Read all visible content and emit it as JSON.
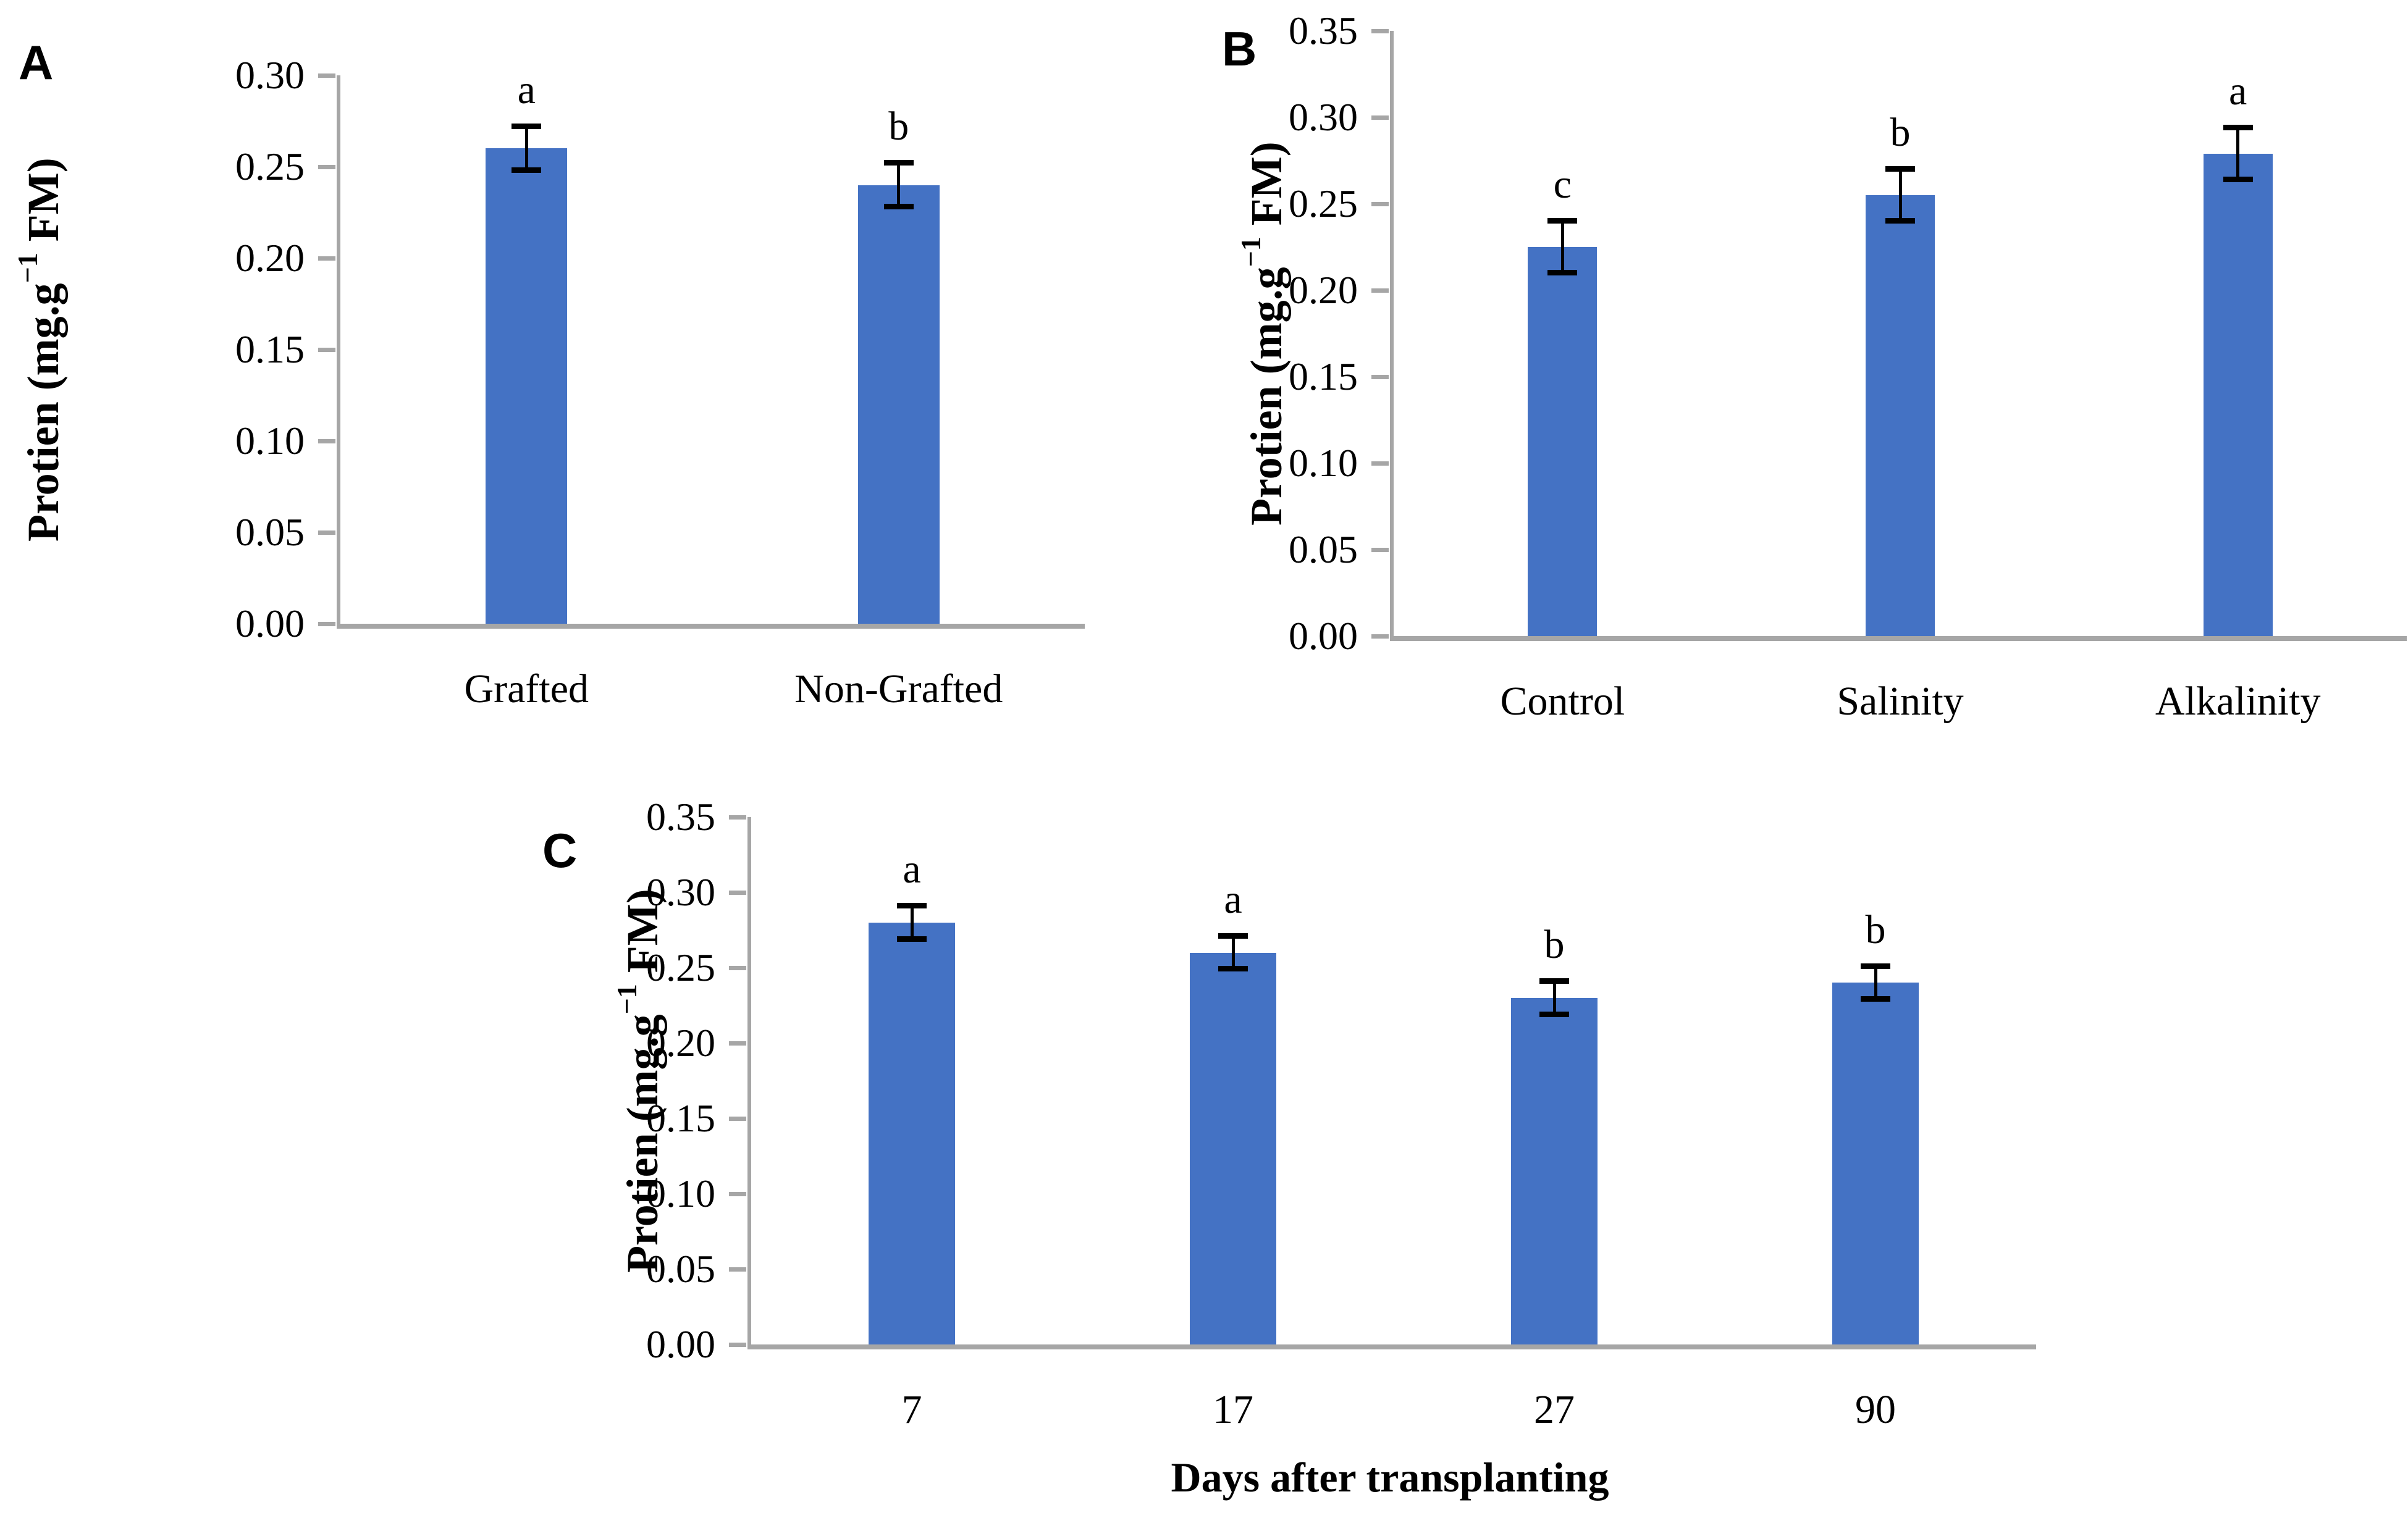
{
  "figure": {
    "background": "#ffffff"
  },
  "colors": {
    "bar_fill": "#4472C4",
    "axis_line": "#a6a6a6",
    "error_bar": "#000000",
    "text": "#000000"
  },
  "chart_data": [
    {
      "type": "bar",
      "panel_label": "A",
      "title": "",
      "ylabel": "Protien (mg.g−1 FM)",
      "ylabel_parts": {
        "prefix": "Protien (mg.g",
        "sup": "−1",
        "suffix": " FM)"
      },
      "xlabel": "",
      "categories": [
        "Grafted",
        "Non-Grafted"
      ],
      "values": [
        0.26,
        0.24
      ],
      "errors": [
        0.012,
        0.012
      ],
      "sig_letters": [
        "a",
        "b"
      ],
      "ylim": [
        0,
        0.3
      ],
      "ytick_step": 0.05,
      "ytick_labels": [
        "0.00",
        "0.05",
        "0.10",
        "0.15",
        "0.20",
        "0.25",
        "0.30"
      ],
      "grid": false,
      "legend": null
    },
    {
      "type": "bar",
      "panel_label": "B",
      "title": "",
      "ylabel": "Protien (mg.g−1 FM)",
      "ylabel_parts": {
        "prefix": "Protien (mg.g",
        "sup": "−1",
        "suffix": " FM)"
      },
      "xlabel": "",
      "categories": [
        "Control",
        "Salinity",
        "Alkalinity"
      ],
      "values": [
        0.225,
        0.255,
        0.279
      ],
      "errors": [
        0.015,
        0.015,
        0.015
      ],
      "sig_letters": [
        "c",
        "b",
        "a"
      ],
      "ylim": [
        0,
        0.35
      ],
      "ytick_step": 0.05,
      "ytick_labels": [
        "0.00",
        "0.05",
        "0.10",
        "0.15",
        "0.20",
        "0.25",
        "0.30",
        "0.35"
      ],
      "grid": false,
      "legend": null
    },
    {
      "type": "bar",
      "panel_label": "C",
      "title": "",
      "ylabel": "Protien (mg.g−1 FM)",
      "ylabel_parts": {
        "prefix": "Protien (mg.g",
        "sup": "−1",
        "suffix": " FM)"
      },
      "xlabel": "Days after transplanting",
      "categories": [
        "7",
        "17",
        "27",
        "90"
      ],
      "values": [
        0.28,
        0.26,
        0.23,
        0.24
      ],
      "errors": [
        0.011,
        0.011,
        0.011,
        0.011
      ],
      "sig_letters": [
        "a",
        "a",
        "b",
        "b"
      ],
      "ylim": [
        0,
        0.35
      ],
      "ytick_step": 0.05,
      "ytick_labels": [
        "0.00",
        "0.05",
        "0.10",
        "0.15",
        "0.20",
        "0.25",
        "0.30",
        "0.35"
      ],
      "grid": false,
      "legend": null
    }
  ]
}
